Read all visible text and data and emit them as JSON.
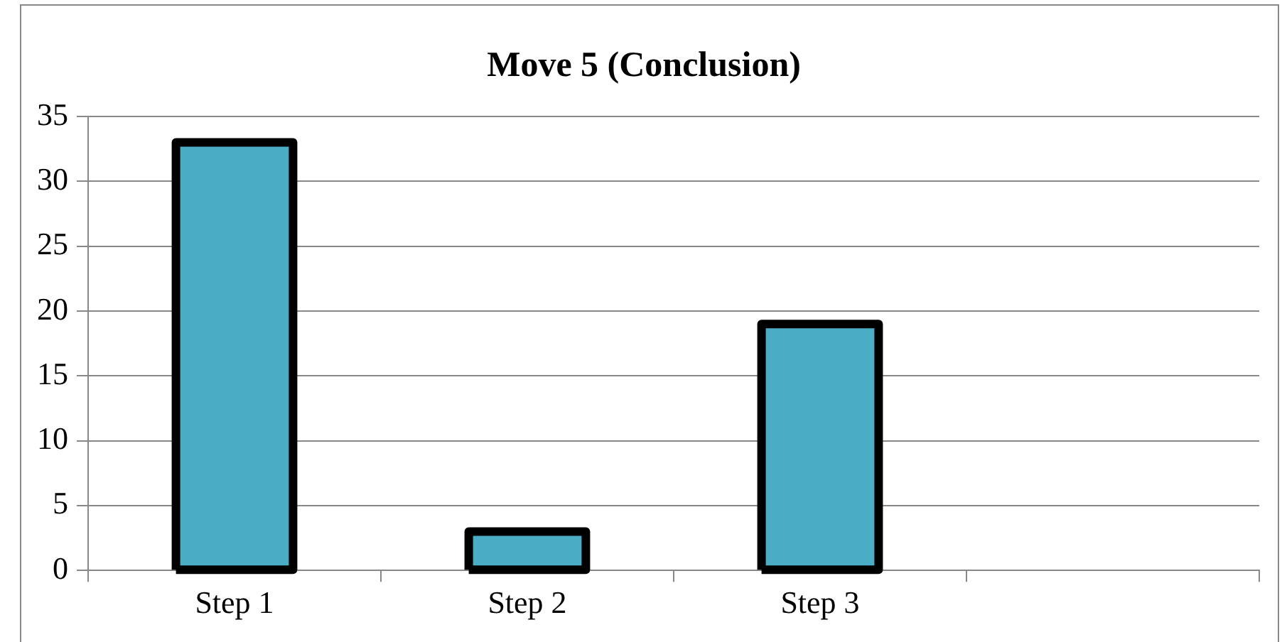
{
  "chart_data": {
    "type": "bar",
    "title": "Move 5 (Conclusion)",
    "categories": [
      "Step 1",
      "Step 2",
      "Step 3",
      null
    ],
    "values": [
      33,
      3,
      19,
      null
    ],
    "color": "#4bacc6",
    "ylim": [
      0,
      35
    ],
    "yticks": [
      0,
      5,
      10,
      15,
      20,
      25,
      30,
      35
    ],
    "grid": "y",
    "legend": false
  }
}
